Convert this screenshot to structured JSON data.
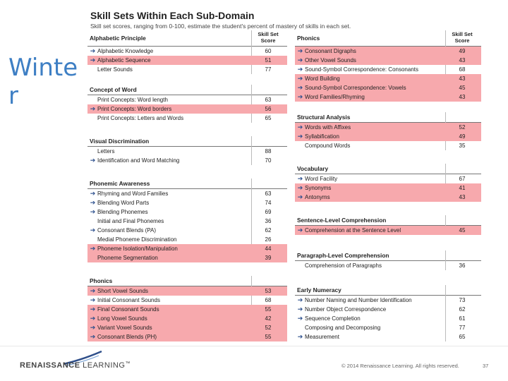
{
  "slide_title": "Winter",
  "report": {
    "title": "Skill Sets Within Each Sub-Domain",
    "subtitle": "Skill set scores, ranging from 0-100, estimate the student's percent of mastery of skills in each set.",
    "score_header": "Skill Set Score"
  },
  "left_panels": [
    {
      "title": "Alphabetic Principle",
      "rows": [
        {
          "name": "Alphabetic Knowledge",
          "score": "60",
          "arrow": true,
          "hl": false
        },
        {
          "name": "Alphabetic Sequence",
          "score": "51",
          "arrow": true,
          "hl": true
        },
        {
          "name": "Letter Sounds",
          "score": "77",
          "arrow": false,
          "hl": false
        }
      ]
    },
    {
      "title": "Concept of Word",
      "rows": [
        {
          "name": "Print Concepts: Word length",
          "score": "63",
          "arrow": false,
          "hl": false
        },
        {
          "name": "Print Concepts: Word borders",
          "score": "56",
          "arrow": true,
          "hl": true
        },
        {
          "name": "Print Concepts: Letters and Words",
          "score": "65",
          "arrow": false,
          "hl": false
        }
      ]
    },
    {
      "title": "Visual Discrimination",
      "rows": [
        {
          "name": "Letters",
          "score": "88",
          "arrow": false,
          "hl": false
        },
        {
          "name": "Identification and Word Matching",
          "score": "70",
          "arrow": true,
          "hl": false
        }
      ]
    },
    {
      "title": "Phonemic Awareness",
      "rows": [
        {
          "name": "Rhyming and Word Families",
          "score": "63",
          "arrow": true,
          "hl": false
        },
        {
          "name": "Blending Word Parts",
          "score": "74",
          "arrow": true,
          "hl": false
        },
        {
          "name": "Blending Phonemes",
          "score": "69",
          "arrow": true,
          "hl": false
        },
        {
          "name": "Initial and Final Phonemes",
          "score": "36",
          "arrow": false,
          "hl": false
        },
        {
          "name": "Consonant Blends (PA)",
          "score": "62",
          "arrow": true,
          "hl": false
        },
        {
          "name": "Medial Phoneme Discrimination",
          "score": "26",
          "arrow": false,
          "hl": false
        },
        {
          "name": "Phoneme Isolation/Manipulation",
          "score": "44",
          "arrow": true,
          "hl": true
        },
        {
          "name": "Phoneme Segmentation",
          "score": "39",
          "arrow": false,
          "hl": true
        }
      ]
    },
    {
      "title": "Phonics",
      "rows": [
        {
          "name": "Short Vowel Sounds",
          "score": "53",
          "arrow": true,
          "hl": true
        },
        {
          "name": "Initial Consonant Sounds",
          "score": "68",
          "arrow": true,
          "hl": false
        },
        {
          "name": "Final Consonant Sounds",
          "score": "55",
          "arrow": true,
          "hl": true
        },
        {
          "name": "Long Vowel Sounds",
          "score": "42",
          "arrow": true,
          "hl": true
        },
        {
          "name": "Variant Vowel Sounds",
          "score": "52",
          "arrow": true,
          "hl": true
        },
        {
          "name": "Consonant Blends (PH)",
          "score": "55",
          "arrow": true,
          "hl": true
        }
      ]
    }
  ],
  "right_panels": [
    {
      "title": "Phonics",
      "rows": [
        {
          "name": "Consonant Digraphs",
          "score": "49",
          "arrow": true,
          "hl": true
        },
        {
          "name": "Other Vowel Sounds",
          "score": "43",
          "arrow": true,
          "hl": true
        },
        {
          "name": "Sound-Symbol Correspondence: Consonants",
          "score": "68",
          "arrow": true,
          "hl": false
        },
        {
          "name": "Word Building",
          "score": "43",
          "arrow": true,
          "hl": true
        },
        {
          "name": "Sound-Symbol Correspondence: Vowels",
          "score": "45",
          "arrow": true,
          "hl": true
        },
        {
          "name": "Word Families/Rhyming",
          "score": "43",
          "arrow": true,
          "hl": true
        }
      ]
    },
    {
      "title": "Structural Analysis",
      "rows": [
        {
          "name": "Words with Affixes",
          "score": "52",
          "arrow": true,
          "hl": true
        },
        {
          "name": "Syllabification",
          "score": "49",
          "arrow": true,
          "hl": true
        },
        {
          "name": "Compound Words",
          "score": "35",
          "arrow": false,
          "hl": false
        }
      ]
    },
    {
      "title": "Vocabulary",
      "rows": [
        {
          "name": "Word Facility",
          "score": "67",
          "arrow": true,
          "hl": false
        },
        {
          "name": "Synonyms",
          "score": "41",
          "arrow": true,
          "hl": true
        },
        {
          "name": "Antonyms",
          "score": "43",
          "arrow": true,
          "hl": true
        }
      ]
    },
    {
      "title": "Sentence-Level Comprehension",
      "rows": [
        {
          "name": "Comprehension at the Sentence Level",
          "score": "45",
          "arrow": true,
          "hl": true
        }
      ]
    },
    {
      "title": "Paragraph-Level Comprehension",
      "rows": [
        {
          "name": "Comprehension of Paragraphs",
          "score": "36",
          "arrow": false,
          "hl": false
        }
      ]
    },
    {
      "title": "Early Numeracy",
      "rows": [
        {
          "name": "Number Naming and Number Identification",
          "score": "73",
          "arrow": true,
          "hl": false
        },
        {
          "name": "Number Object Correspondence",
          "score": "62",
          "arrow": true,
          "hl": false
        },
        {
          "name": "Sequence Completion",
          "score": "61",
          "arrow": true,
          "hl": false
        },
        {
          "name": "Composing and Decomposing",
          "score": "77",
          "arrow": false,
          "hl": false
        },
        {
          "name": "Measurement",
          "score": "65",
          "arrow": true,
          "hl": false
        }
      ]
    }
  ],
  "footer": {
    "logo_left": "RENAISSANCE",
    "logo_right": "LEARNING",
    "trademark": "™",
    "copyright": "© 2014 Renaissance Learning. All rights reserved.",
    "page_number": "37"
  },
  "colors": {
    "highlight": "#f7a9ad",
    "arrow": "#2b4e8c",
    "title": "#3e7fc4"
  }
}
